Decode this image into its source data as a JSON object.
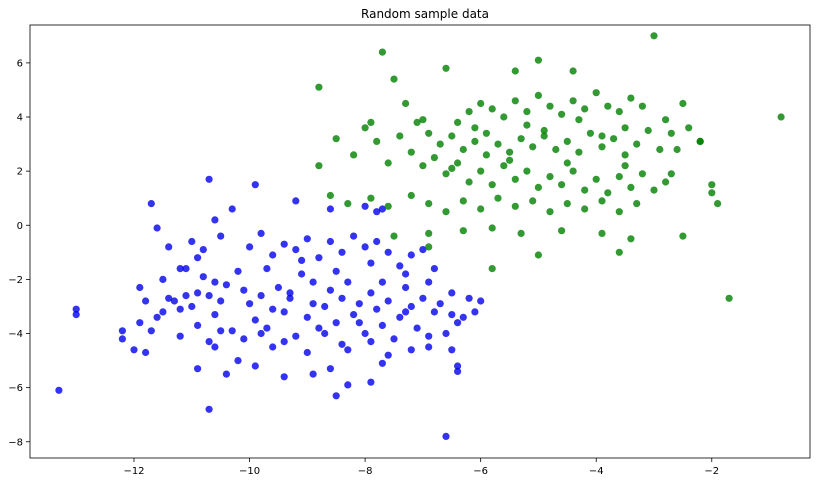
{
  "chart_data": {
    "type": "scatter",
    "title": "Random sample data",
    "xlabel": "",
    "ylabel": "",
    "xlim": [
      -13.8,
      -0.3
    ],
    "ylim": [
      -8.6,
      7.4
    ],
    "xticks": [
      -12,
      -10,
      -8,
      -6,
      -4,
      -2
    ],
    "yticks": [
      -8,
      -6,
      -4,
      -2,
      0,
      2,
      4,
      6
    ],
    "grid": false,
    "legend": "none",
    "series": [
      {
        "color": "#0000ee",
        "opacity": 0.8,
        "points": [
          [
            -13.3,
            -6.1
          ],
          [
            -13.0,
            -3.1
          ],
          [
            -13.0,
            -3.3
          ],
          [
            -12.2,
            -4.2
          ],
          [
            -12.2,
            -3.9
          ],
          [
            -12.0,
            -4.6
          ],
          [
            -11.9,
            -2.3
          ],
          [
            -11.8,
            -4.7
          ],
          [
            -11.8,
            -2.8
          ],
          [
            -11.6,
            -3.4
          ],
          [
            -11.5,
            -2.0
          ],
          [
            -11.4,
            -2.7
          ],
          [
            -11.3,
            -2.8
          ],
          [
            -11.2,
            -3.1
          ],
          [
            -11.1,
            -2.6
          ],
          [
            -11.1,
            -1.6
          ],
          [
            -11.0,
            -3.0
          ],
          [
            -10.9,
            -5.3
          ],
          [
            -10.9,
            -2.5
          ],
          [
            -10.8,
            -1.9
          ],
          [
            -10.7,
            -4.3
          ],
          [
            -10.7,
            -2.6
          ],
          [
            -10.6,
            -4.5
          ],
          [
            -10.6,
            -3.3
          ],
          [
            -10.5,
            -2.8
          ],
          [
            -10.4,
            -2.2
          ],
          [
            -10.3,
            -3.9
          ],
          [
            -10.2,
            -5.0
          ],
          [
            -10.0,
            -2.9
          ],
          [
            -9.9,
            -3.5
          ],
          [
            -9.8,
            -2.6
          ],
          [
            -9.7,
            -3.8
          ],
          [
            -9.6,
            -4.5
          ],
          [
            -9.5,
            -2.3
          ],
          [
            -9.4,
            -3.2
          ],
          [
            -9.3,
            -2.7
          ],
          [
            -9.2,
            -4.1
          ],
          [
            -9.1,
            -1.8
          ],
          [
            -9.0,
            -3.4
          ],
          [
            -8.9,
            -2.9
          ],
          [
            -8.8,
            -3.8
          ],
          [
            -8.7,
            -3.0
          ],
          [
            -8.6,
            -2.4
          ],
          [
            -8.5,
            -3.6
          ],
          [
            -8.4,
            -4.4
          ],
          [
            -8.3,
            -2.1
          ],
          [
            -8.2,
            -3.3
          ],
          [
            -8.1,
            -2.9
          ],
          [
            -8.0,
            -4.0
          ],
          [
            -7.9,
            -2.5
          ],
          [
            -7.8,
            -3.1
          ],
          [
            -7.7,
            -3.7
          ],
          [
            -7.6,
            -2.8
          ],
          [
            -7.5,
            -4.2
          ],
          [
            -7.4,
            -3.4
          ],
          [
            -7.3,
            -2.3
          ],
          [
            -7.2,
            -3.0
          ],
          [
            -7.1,
            -3.8
          ],
          [
            -7.0,
            -2.7
          ],
          [
            -6.9,
            -4.1
          ],
          [
            -6.8,
            -3.2
          ],
          [
            -6.7,
            -2.9
          ],
          [
            -6.6,
            -4.0
          ],
          [
            -6.5,
            -3.3
          ],
          [
            -6.4,
            -3.6
          ],
          [
            -6.3,
            -3.4
          ],
          [
            -6.2,
            -2.7
          ],
          [
            -6.1,
            -3.2
          ],
          [
            -11.6,
            -0.1
          ],
          [
            -11.4,
            -0.8
          ],
          [
            -11.0,
            -0.6
          ],
          [
            -10.8,
            -0.9
          ],
          [
            -10.6,
            0.2
          ],
          [
            -10.5,
            -0.4
          ],
          [
            -10.3,
            0.6
          ],
          [
            -10.0,
            -0.8
          ],
          [
            -9.8,
            -0.3
          ],
          [
            -9.6,
            -1.1
          ],
          [
            -9.4,
            -0.7
          ],
          [
            -9.2,
            -0.9
          ],
          [
            -9.0,
            -0.5
          ],
          [
            -8.8,
            -1.2
          ],
          [
            -8.6,
            -0.6
          ],
          [
            -8.4,
            -1.0
          ],
          [
            -8.2,
            -0.4
          ],
          [
            -8.0,
            -0.8
          ],
          [
            -7.8,
            -0.6
          ],
          [
            -7.6,
            -1.0
          ],
          [
            -7.4,
            -1.5
          ],
          [
            -7.2,
            -1.1
          ],
          [
            -7.0,
            -0.9
          ],
          [
            -11.7,
            0.8
          ],
          [
            -10.7,
            1.7
          ],
          [
            -9.9,
            1.5
          ],
          [
            -9.2,
            0.9
          ],
          [
            -8.6,
            0.6
          ],
          [
            -8.0,
            0.7
          ],
          [
            -7.8,
            0.5
          ],
          [
            -7.7,
            0.6
          ],
          [
            -11.2,
            -1.6
          ],
          [
            -10.9,
            -1.2
          ],
          [
            -10.2,
            -1.7
          ],
          [
            -9.7,
            -1.6
          ],
          [
            -9.1,
            -1.3
          ],
          [
            -8.5,
            -1.7
          ],
          [
            -7.9,
            -1.4
          ],
          [
            -7.3,
            -1.8
          ],
          [
            -6.8,
            -1.6
          ],
          [
            -11.9,
            -3.6
          ],
          [
            -11.7,
            -3.9
          ],
          [
            -11.2,
            -4.1
          ],
          [
            -10.9,
            -3.7
          ],
          [
            -10.5,
            -3.9
          ],
          [
            -10.1,
            -4.2
          ],
          [
            -9.8,
            -4.0
          ],
          [
            -9.4,
            -4.3
          ],
          [
            -9.0,
            -4.7
          ],
          [
            -8.7,
            -4.0
          ],
          [
            -8.3,
            -4.6
          ],
          [
            -7.9,
            -4.3
          ],
          [
            -7.6,
            -4.8
          ],
          [
            -7.2,
            -4.6
          ],
          [
            -6.9,
            -4.5
          ],
          [
            -6.5,
            -4.6
          ],
          [
            -10.4,
            -5.5
          ],
          [
            -9.9,
            -5.2
          ],
          [
            -9.4,
            -5.6
          ],
          [
            -8.9,
            -5.5
          ],
          [
            -8.6,
            -5.3
          ],
          [
            -8.3,
            -5.9
          ],
          [
            -7.9,
            -5.8
          ],
          [
            -7.7,
            -5.1
          ],
          [
            -6.4,
            -5.2
          ],
          [
            -6.4,
            -5.4
          ],
          [
            -8.5,
            -6.3
          ],
          [
            -10.7,
            -6.8
          ],
          [
            -6.6,
            -7.8
          ],
          [
            -11.5,
            -3.2
          ],
          [
            -10.6,
            -2.1
          ],
          [
            -10.1,
            -2.4
          ],
          [
            -9.6,
            -3.1
          ],
          [
            -9.3,
            -2.5
          ],
          [
            -8.9,
            -2.1
          ],
          [
            -8.4,
            -2.7
          ],
          [
            -8.1,
            -3.6
          ],
          [
            -7.7,
            -2.1
          ],
          [
            -7.3,
            -3.2
          ],
          [
            -6.9,
            -2.1
          ],
          [
            -6.5,
            -2.5
          ],
          [
            -6.0,
            -2.8
          ]
        ]
      },
      {
        "color": "#008000",
        "opacity": 0.8,
        "points": [
          [
            -8.8,
            5.1
          ],
          [
            -7.7,
            6.4
          ],
          [
            -7.5,
            5.4
          ],
          [
            -6.6,
            5.8
          ],
          [
            -3.0,
            7.0
          ],
          [
            -5.0,
            6.1
          ],
          [
            -4.4,
            5.7
          ],
          [
            -5.4,
            5.7
          ],
          [
            -6.4,
            3.8
          ],
          [
            -6.2,
            4.2
          ],
          [
            -6.0,
            4.5
          ],
          [
            -5.8,
            4.3
          ],
          [
            -5.6,
            4.0
          ],
          [
            -5.4,
            4.6
          ],
          [
            -5.2,
            4.2
          ],
          [
            -5.0,
            4.8
          ],
          [
            -4.8,
            4.4
          ],
          [
            -4.6,
            4.1
          ],
          [
            -4.4,
            4.6
          ],
          [
            -4.2,
            4.3
          ],
          [
            -4.0,
            4.9
          ],
          [
            -3.8,
            4.4
          ],
          [
            -3.6,
            4.2
          ],
          [
            -3.4,
            4.7
          ],
          [
            -3.2,
            4.4
          ],
          [
            -2.8,
            3.9
          ],
          [
            -2.5,
            4.5
          ],
          [
            -7.3,
            4.5
          ],
          [
            -7.1,
            3.8
          ],
          [
            -6.9,
            3.4
          ],
          [
            -6.7,
            3.0
          ],
          [
            -6.5,
            3.3
          ],
          [
            -6.3,
            2.8
          ],
          [
            -6.1,
            3.1
          ],
          [
            -5.9,
            2.6
          ],
          [
            -5.7,
            3.0
          ],
          [
            -5.5,
            2.7
          ],
          [
            -5.3,
            3.2
          ],
          [
            -5.1,
            2.9
          ],
          [
            -4.9,
            3.3
          ],
          [
            -4.7,
            2.8
          ],
          [
            -4.5,
            3.1
          ],
          [
            -4.3,
            2.7
          ],
          [
            -4.1,
            3.4
          ],
          [
            -3.9,
            2.9
          ],
          [
            -3.7,
            3.2
          ],
          [
            -3.5,
            2.6
          ],
          [
            -3.3,
            3.0
          ],
          [
            -3.1,
            3.5
          ],
          [
            -2.9,
            2.8
          ],
          [
            -2.7,
            3.4
          ],
          [
            -2.4,
            3.6
          ],
          [
            -2.2,
            3.1
          ],
          [
            -8.8,
            2.2
          ],
          [
            -8.5,
            3.2
          ],
          [
            -8.2,
            2.6
          ],
          [
            -8.0,
            3.6
          ],
          [
            -7.8,
            3.1
          ],
          [
            -7.6,
            2.3
          ],
          [
            -7.4,
            3.3
          ],
          [
            -7.2,
            2.7
          ],
          [
            -7.0,
            2.2
          ],
          [
            -6.8,
            2.5
          ],
          [
            -6.6,
            1.9
          ],
          [
            -6.4,
            2.3
          ],
          [
            -6.2,
            1.6
          ],
          [
            -6.0,
            2.0
          ],
          [
            -5.8,
            1.5
          ],
          [
            -5.6,
            2.2
          ],
          [
            -5.4,
            1.7
          ],
          [
            -5.2,
            2.0
          ],
          [
            -5.0,
            1.4
          ],
          [
            -4.8,
            1.8
          ],
          [
            -4.6,
            1.5
          ],
          [
            -4.4,
            2.0
          ],
          [
            -4.2,
            1.3
          ],
          [
            -4.0,
            1.7
          ],
          [
            -3.8,
            1.2
          ],
          [
            -3.6,
            1.8
          ],
          [
            -3.4,
            1.4
          ],
          [
            -3.2,
            1.9
          ],
          [
            -3.0,
            1.3
          ],
          [
            -2.8,
            1.6
          ],
          [
            -8.6,
            1.1
          ],
          [
            -8.3,
            0.8
          ],
          [
            -7.9,
            1.0
          ],
          [
            -7.6,
            0.7
          ],
          [
            -7.2,
            1.1
          ],
          [
            -6.9,
            0.8
          ],
          [
            -6.6,
            0.5
          ],
          [
            -6.3,
            0.9
          ],
          [
            -6.0,
            0.6
          ],
          [
            -5.7,
            1.0
          ],
          [
            -5.4,
            0.7
          ],
          [
            -5.1,
            0.9
          ],
          [
            -4.8,
            0.5
          ],
          [
            -4.5,
            0.8
          ],
          [
            -4.2,
            0.6
          ],
          [
            -3.9,
            0.9
          ],
          [
            -3.6,
            0.5
          ],
          [
            -3.3,
            0.8
          ],
          [
            -7.5,
            -0.4
          ],
          [
            -6.9,
            -0.3
          ],
          [
            -6.3,
            -0.2
          ],
          [
            -5.8,
            -0.1
          ],
          [
            -5.3,
            -0.3
          ],
          [
            -4.6,
            -0.2
          ],
          [
            -3.9,
            -0.3
          ],
          [
            -3.4,
            -0.5
          ],
          [
            -2.5,
            -0.4
          ],
          [
            -6.9,
            -0.8
          ],
          [
            -5.8,
            -1.6
          ],
          [
            -5.0,
            -1.1
          ],
          [
            -3.6,
            -1.0
          ],
          [
            -1.7,
            -2.7
          ],
          [
            -2.0,
            1.5
          ],
          [
            -2.0,
            1.2
          ],
          [
            -1.9,
            0.8
          ],
          [
            -2.2,
            3.1
          ],
          [
            -2.6,
            2.8
          ],
          [
            -2.7,
            1.9
          ],
          [
            -0.8,
            4.0
          ],
          [
            -7.9,
            3.8
          ],
          [
            -7.0,
            3.9
          ],
          [
            -6.1,
            3.6
          ],
          [
            -5.2,
            3.7
          ],
          [
            -4.3,
            3.9
          ],
          [
            -3.5,
            3.6
          ],
          [
            -6.5,
            2.1
          ],
          [
            -5.5,
            2.4
          ],
          [
            -4.5,
            2.3
          ],
          [
            -3.5,
            2.2
          ],
          [
            -5.9,
            3.4
          ],
          [
            -4.9,
            3.5
          ],
          [
            -3.9,
            3.3
          ]
        ]
      }
    ]
  }
}
